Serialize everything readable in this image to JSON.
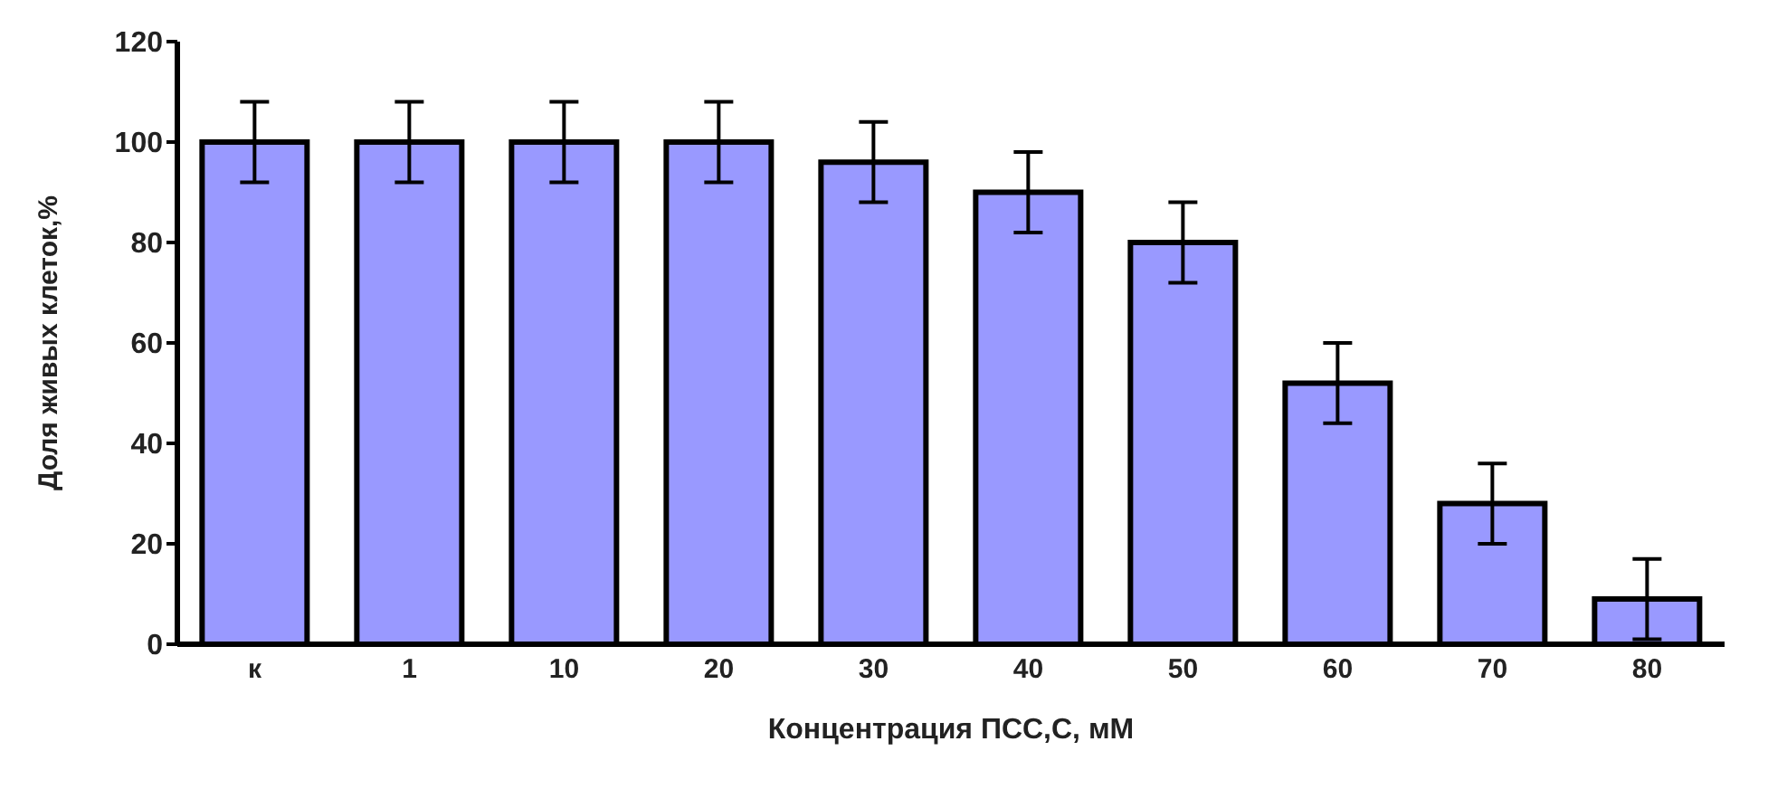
{
  "chart_data": {
    "type": "bar",
    "xlabel": "Концентрация ПСС,С, мМ",
    "ylabel": "Доля живых клеток,%",
    "categories": [
      "к",
      "1",
      "10",
      "20",
      "30",
      "40",
      "50",
      "60",
      "70",
      "80"
    ],
    "values": [
      100,
      100,
      100,
      100,
      96,
      90,
      80,
      52,
      28,
      9
    ],
    "errors": [
      8,
      8,
      8,
      8,
      8,
      8,
      8,
      8,
      8,
      8
    ],
    "color": "#9999ff",
    "ylim": [
      0,
      120
    ],
    "yticks": [
      0,
      20,
      40,
      60,
      80,
      100,
      120
    ],
    "grid": false,
    "legend": false
  }
}
